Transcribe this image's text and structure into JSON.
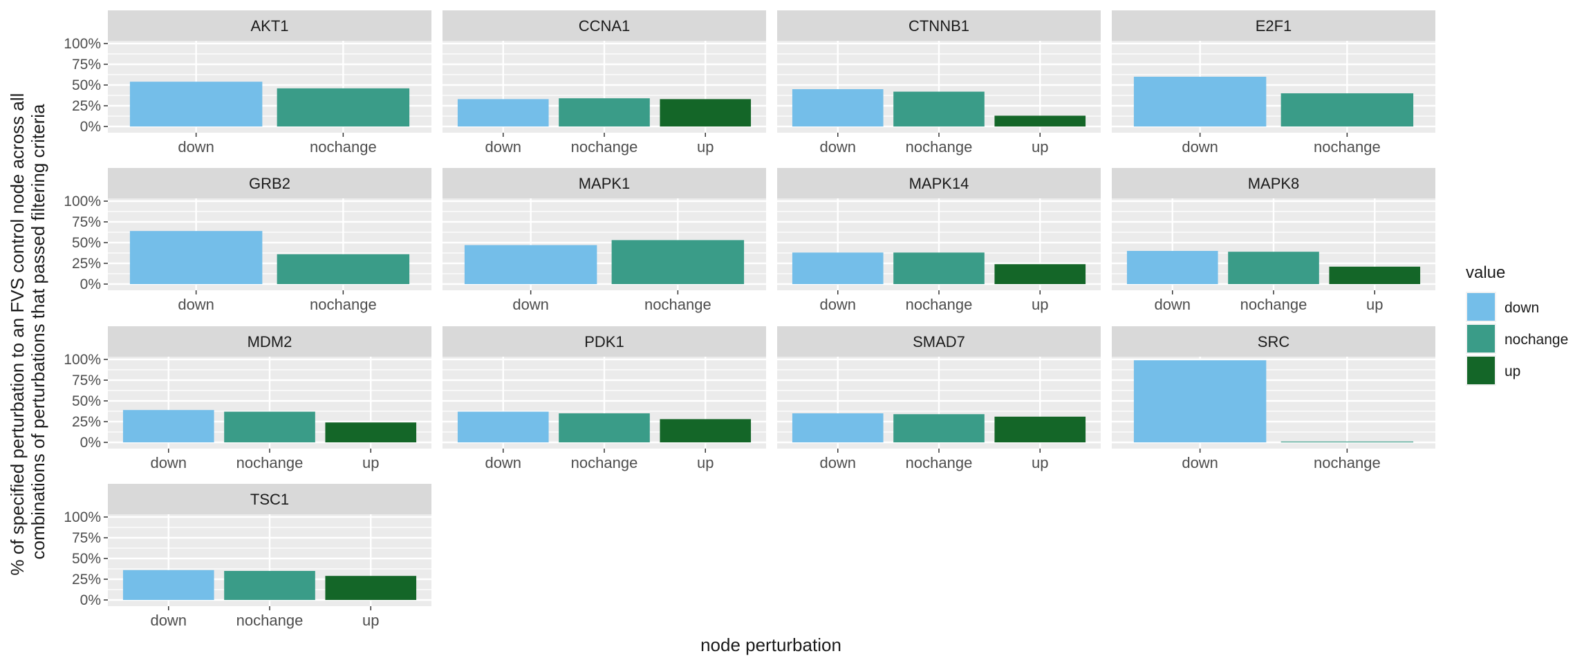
{
  "colors": {
    "down": "#74BEE9",
    "nochange": "#3A9C88",
    "up": "#146628",
    "panel_bg": "#EBEBEB",
    "strip_bg": "#D9D9D9",
    "grid": "#FFFFFF",
    "text_dark": "#1A1A1A",
    "text_tick": "#4D4D4D"
  },
  "chart_data": {
    "type": "bar",
    "facet_by": "node",
    "facet_layout": {
      "columns": 4,
      "rows": 4,
      "scales_x": "free"
    },
    "xlabel": "node perturbation",
    "ylabel_lines": [
      "% of specified perturbation to an FVS control node across all",
      "combinations of perturbations that passed filtering criteria"
    ],
    "ylim": [
      0,
      1
    ],
    "y_ticks": [
      0,
      0.25,
      0.5,
      0.75,
      1.0
    ],
    "y_tick_labels": [
      "0%",
      "25%",
      "50%",
      "75%",
      "100%"
    ],
    "grid": true,
    "legend": {
      "title": "value",
      "position": "right",
      "entries": [
        "down",
        "nochange",
        "up"
      ]
    },
    "panels": [
      {
        "node": "AKT1",
        "categories": [
          "down",
          "nochange"
        ],
        "values": [
          0.54,
          0.46
        ]
      },
      {
        "node": "CCNA1",
        "categories": [
          "down",
          "nochange",
          "up"
        ],
        "values": [
          0.33,
          0.34,
          0.33
        ]
      },
      {
        "node": "CTNNB1",
        "categories": [
          "down",
          "nochange",
          "up"
        ],
        "values": [
          0.45,
          0.42,
          0.13
        ]
      },
      {
        "node": "E2F1",
        "categories": [
          "down",
          "nochange"
        ],
        "values": [
          0.6,
          0.4
        ]
      },
      {
        "node": "GRB2",
        "categories": [
          "down",
          "nochange"
        ],
        "values": [
          0.64,
          0.36
        ]
      },
      {
        "node": "MAPK1",
        "categories": [
          "down",
          "nochange"
        ],
        "values": [
          0.47,
          0.53
        ]
      },
      {
        "node": "MAPK14",
        "categories": [
          "down",
          "nochange",
          "up"
        ],
        "values": [
          0.38,
          0.38,
          0.24
        ]
      },
      {
        "node": "MAPK8",
        "categories": [
          "down",
          "nochange",
          "up"
        ],
        "values": [
          0.4,
          0.39,
          0.21
        ]
      },
      {
        "node": "MDM2",
        "categories": [
          "down",
          "nochange",
          "up"
        ],
        "values": [
          0.39,
          0.37,
          0.24
        ]
      },
      {
        "node": "PDK1",
        "categories": [
          "down",
          "nochange",
          "up"
        ],
        "values": [
          0.37,
          0.35,
          0.28
        ]
      },
      {
        "node": "SMAD7",
        "categories": [
          "down",
          "nochange",
          "up"
        ],
        "values": [
          0.35,
          0.34,
          0.31
        ]
      },
      {
        "node": "SRC",
        "categories": [
          "down",
          "nochange"
        ],
        "values": [
          0.99,
          0.01
        ]
      },
      {
        "node": "TSC1",
        "categories": [
          "down",
          "nochange",
          "up"
        ],
        "values": [
          0.36,
          0.35,
          0.29
        ]
      }
    ]
  }
}
